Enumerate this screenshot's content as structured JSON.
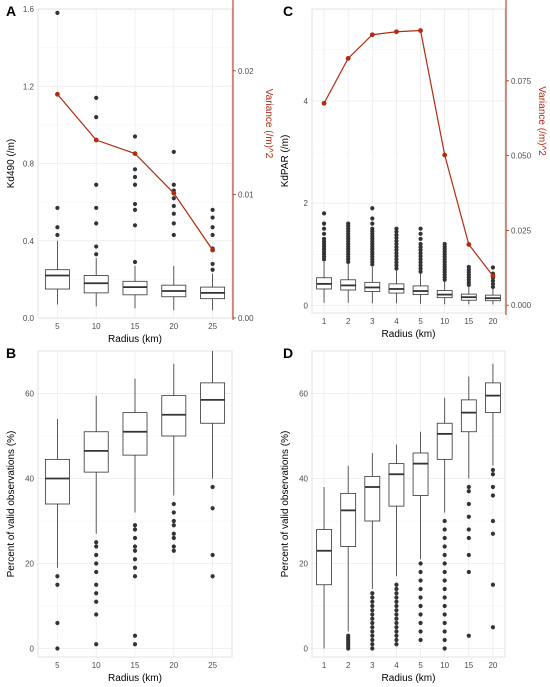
{
  "figure": {
    "panels": [
      "A",
      "B",
      "C",
      "D"
    ]
  },
  "colors": {
    "variance": "#b22a10",
    "box_stroke": "#333333",
    "outlier": "#333333",
    "grid": "#ebebeb",
    "panel_border": "#dcdcdc"
  },
  "chart_data": [
    {
      "panel": "A",
      "type": "box",
      "xlabel": "Radius (km)",
      "ylabel": "Kd490 (/m)",
      "categories": [
        "5",
        "10",
        "15",
        "20",
        "25"
      ],
      "ylim": [
        0,
        1.6
      ],
      "yticks": [
        0.0,
        0.4,
        0.8,
        1.2,
        1.6
      ],
      "ytick_labels": [
        "0.0",
        "0.4",
        "0.8",
        "1.2",
        "1.6"
      ],
      "boxes": [
        {
          "lower": 0.07,
          "q1": 0.15,
          "median": 0.22,
          "q3": 0.25,
          "upper": 0.4
        },
        {
          "lower": 0.06,
          "q1": 0.13,
          "median": 0.18,
          "q3": 0.22,
          "upper": 0.31
        },
        {
          "lower": 0.05,
          "q1": 0.12,
          "median": 0.16,
          "q3": 0.19,
          "upper": 0.27
        },
        {
          "lower": 0.04,
          "q1": 0.11,
          "median": 0.14,
          "q3": 0.17,
          "upper": 0.27
        },
        {
          "lower": 0.04,
          "q1": 0.1,
          "median": 0.13,
          "q3": 0.16,
          "upper": 0.23
        }
      ],
      "outliers": [
        [
          0.43,
          0.47,
          0.57,
          1.58
        ],
        [
          0.33,
          0.37,
          0.49,
          0.57,
          0.69,
          1.04,
          1.14
        ],
        [
          0.29,
          0.48,
          0.56,
          0.59,
          0.69,
          0.73,
          0.77,
          0.94
        ],
        [
          0.43,
          0.49,
          0.54,
          0.58,
          0.62,
          0.66,
          0.69,
          0.86
        ],
        [
          0.25,
          0.28,
          0.36,
          0.43,
          0.47,
          0.52,
          0.56
        ]
      ],
      "secondary": {
        "ylabel": "Variance (/m)^2",
        "ylim": [
          0,
          0.025
        ],
        "yticks": [
          0.0,
          0.01,
          0.02
        ],
        "ytick_labels": [
          "0.00",
          "0.01",
          "0.02"
        ],
        "values": [
          0.0181,
          0.0144,
          0.0133,
          0.0101,
          0.0055
        ]
      }
    },
    {
      "panel": "B",
      "type": "box",
      "xlabel": "Radius (km)",
      "ylabel": "Percent of valid observations (%)",
      "categories": [
        "5",
        "10",
        "15",
        "20",
        "25"
      ],
      "ylim": [
        -2,
        70
      ],
      "yticks": [
        0,
        20,
        40,
        60
      ],
      "ytick_labels": [
        "0",
        "20",
        "40",
        "60"
      ],
      "boxes": [
        {
          "lower": 19,
          "q1": 34,
          "median": 40,
          "q3": 44.5,
          "upper": 54
        },
        {
          "lower": 27,
          "q1": 41.5,
          "median": 46.5,
          "q3": 51,
          "upper": 59.5
        },
        {
          "lower": 32,
          "q1": 45.5,
          "median": 51,
          "q3": 55.5,
          "upper": 63.5
        },
        {
          "lower": 36,
          "q1": 50,
          "median": 55,
          "q3": 59.5,
          "upper": 67
        },
        {
          "lower": 40,
          "q1": 53,
          "median": 58.5,
          "q3": 62.5,
          "upper": 70
        }
      ],
      "outliers": [
        [
          0,
          6,
          15,
          17
        ],
        [
          1,
          8,
          11,
          13,
          15,
          18,
          20,
          22,
          24,
          25
        ],
        [
          1,
          3,
          17,
          19,
          21,
          23,
          24,
          26,
          28,
          29
        ],
        [
          23,
          24,
          26,
          27,
          29,
          30,
          32,
          34
        ],
        [
          17,
          22,
          33,
          38
        ]
      ]
    },
    {
      "panel": "C",
      "type": "box",
      "xlabel": "Radius (km)",
      "ylabel": "KdPAR (/m)",
      "categories": [
        "1",
        "2",
        "3",
        "4",
        "5",
        "10",
        "15",
        "20"
      ],
      "ylim": [
        -0.15,
        5.8
      ],
      "yticks": [
        0,
        2,
        4
      ],
      "ytick_labels": [
        "0",
        "2",
        "4"
      ],
      "boxes": [
        {
          "lower": 0.05,
          "q1": 0.32,
          "median": 0.42,
          "q3": 0.54,
          "upper": 0.85
        },
        {
          "lower": 0.05,
          "q1": 0.3,
          "median": 0.39,
          "q3": 0.5,
          "upper": 0.82
        },
        {
          "lower": 0.04,
          "q1": 0.27,
          "median": 0.35,
          "q3": 0.45,
          "upper": 0.75
        },
        {
          "lower": 0.04,
          "q1": 0.24,
          "median": 0.32,
          "q3": 0.42,
          "upper": 0.68
        },
        {
          "lower": 0.03,
          "q1": 0.21,
          "median": 0.28,
          "q3": 0.38,
          "upper": 0.62
        },
        {
          "lower": 0.02,
          "q1": 0.15,
          "median": 0.21,
          "q3": 0.29,
          "upper": 0.47
        },
        {
          "lower": 0.02,
          "q1": 0.1,
          "median": 0.16,
          "q3": 0.22,
          "upper": 0.36
        },
        {
          "lower": 0.02,
          "q1": 0.09,
          "median": 0.14,
          "q3": 0.2,
          "upper": 0.32
        }
      ],
      "outliers": [
        [
          0.9,
          0.95,
          1.0,
          1.05,
          1.1,
          1.15,
          1.2,
          1.25,
          1.3,
          1.4,
          1.5,
          1.6,
          1.8
        ],
        [
          0.85,
          0.9,
          0.95,
          1.0,
          1.05,
          1.1,
          1.15,
          1.2,
          1.25,
          1.3,
          1.35,
          1.4,
          1.45,
          1.5,
          1.55,
          1.6
        ],
        [
          0.8,
          0.85,
          0.9,
          0.95,
          1.0,
          1.05,
          1.1,
          1.15,
          1.2,
          1.25,
          1.3,
          1.35,
          1.4,
          1.45,
          1.5,
          1.6,
          1.7,
          1.9
        ],
        [
          0.72,
          0.78,
          0.84,
          0.9,
          0.96,
          1.02,
          1.08,
          1.14,
          1.2,
          1.26,
          1.32,
          1.38,
          1.44,
          1.5
        ],
        [
          0.66,
          0.72,
          0.78,
          0.84,
          0.9,
          0.96,
          1.02,
          1.08,
          1.14,
          1.2,
          1.3,
          1.4,
          1.5
        ],
        [
          0.5,
          0.55,
          0.6,
          0.65,
          0.7,
          0.75,
          0.8,
          0.85,
          0.9,
          0.95,
          1.0,
          1.05,
          1.1,
          1.15,
          1.2
        ],
        [
          0.4,
          0.45,
          0.5,
          0.55,
          0.6,
          0.65,
          0.7,
          0.75
        ],
        [
          0.36,
          0.42,
          0.48,
          0.54,
          0.62,
          0.74
        ]
      ],
      "secondary": {
        "ylabel": "Variance (/m)^2",
        "ylim": [
          -0.0026,
          0.099
        ],
        "yticks": [
          0.0,
          0.025,
          0.05,
          0.075
        ],
        "ytick_labels": [
          "0.000",
          "0.025",
          "0.050",
          "0.075"
        ],
        "values": [
          0.0675,
          0.0825,
          0.0904,
          0.0914,
          0.0918,
          0.0502,
          0.0203,
          0.0098
        ]
      }
    },
    {
      "panel": "D",
      "type": "box",
      "xlabel": "Radius (km)",
      "ylabel": "Percent of valid observations (%)",
      "categories": [
        "1",
        "2",
        "3",
        "4",
        "5",
        "10",
        "15",
        "20"
      ],
      "ylim": [
        -2,
        70
      ],
      "yticks": [
        0,
        20,
        40,
        60
      ],
      "ytick_labels": [
        "0",
        "20",
        "40",
        "60"
      ],
      "boxes": [
        {
          "lower": 0,
          "q1": 15,
          "median": 23,
          "q3": 28,
          "upper": 38
        },
        {
          "lower": 4,
          "q1": 24,
          "median": 32.5,
          "q3": 36.5,
          "upper": 43
        },
        {
          "lower": 14,
          "q1": 30,
          "median": 38,
          "q3": 40.5,
          "upper": 46
        },
        {
          "lower": 17,
          "q1": 33.5,
          "median": 41,
          "q3": 43.5,
          "upper": 48
        },
        {
          "lower": 21,
          "q1": 36,
          "median": 43.5,
          "q3": 46,
          "upper": 51
        },
        {
          "lower": 32,
          "q1": 44.5,
          "median": 50.5,
          "q3": 53,
          "upper": 59
        },
        {
          "lower": 40,
          "q1": 51,
          "median": 55.5,
          "q3": 58.5,
          "upper": 64
        },
        {
          "lower": 43,
          "q1": 55.5,
          "median": 59.5,
          "q3": 62.5,
          "upper": 67
        }
      ],
      "outliers": [
        [],
        [
          0,
          0.5,
          1,
          1.5,
          2,
          2.5,
          3
        ],
        [
          0,
          1,
          2,
          3,
          4,
          5,
          6,
          7,
          8,
          9,
          10,
          11,
          12,
          13
        ],
        [
          1,
          2,
          3,
          4,
          5,
          6,
          7,
          8,
          9,
          10,
          11,
          12,
          13,
          14,
          15
        ],
        [
          2,
          4,
          6,
          8,
          10,
          12,
          14,
          16,
          18,
          20
        ],
        [
          0,
          2,
          4,
          6,
          8,
          10,
          12,
          14,
          16,
          18,
          20,
          22,
          24,
          26,
          28,
          30
        ],
        [
          3,
          18,
          22,
          26,
          28,
          31,
          34,
          37,
          38
        ],
        [
          5,
          15,
          27,
          30,
          36,
          38,
          41,
          42
        ]
      ]
    }
  ]
}
